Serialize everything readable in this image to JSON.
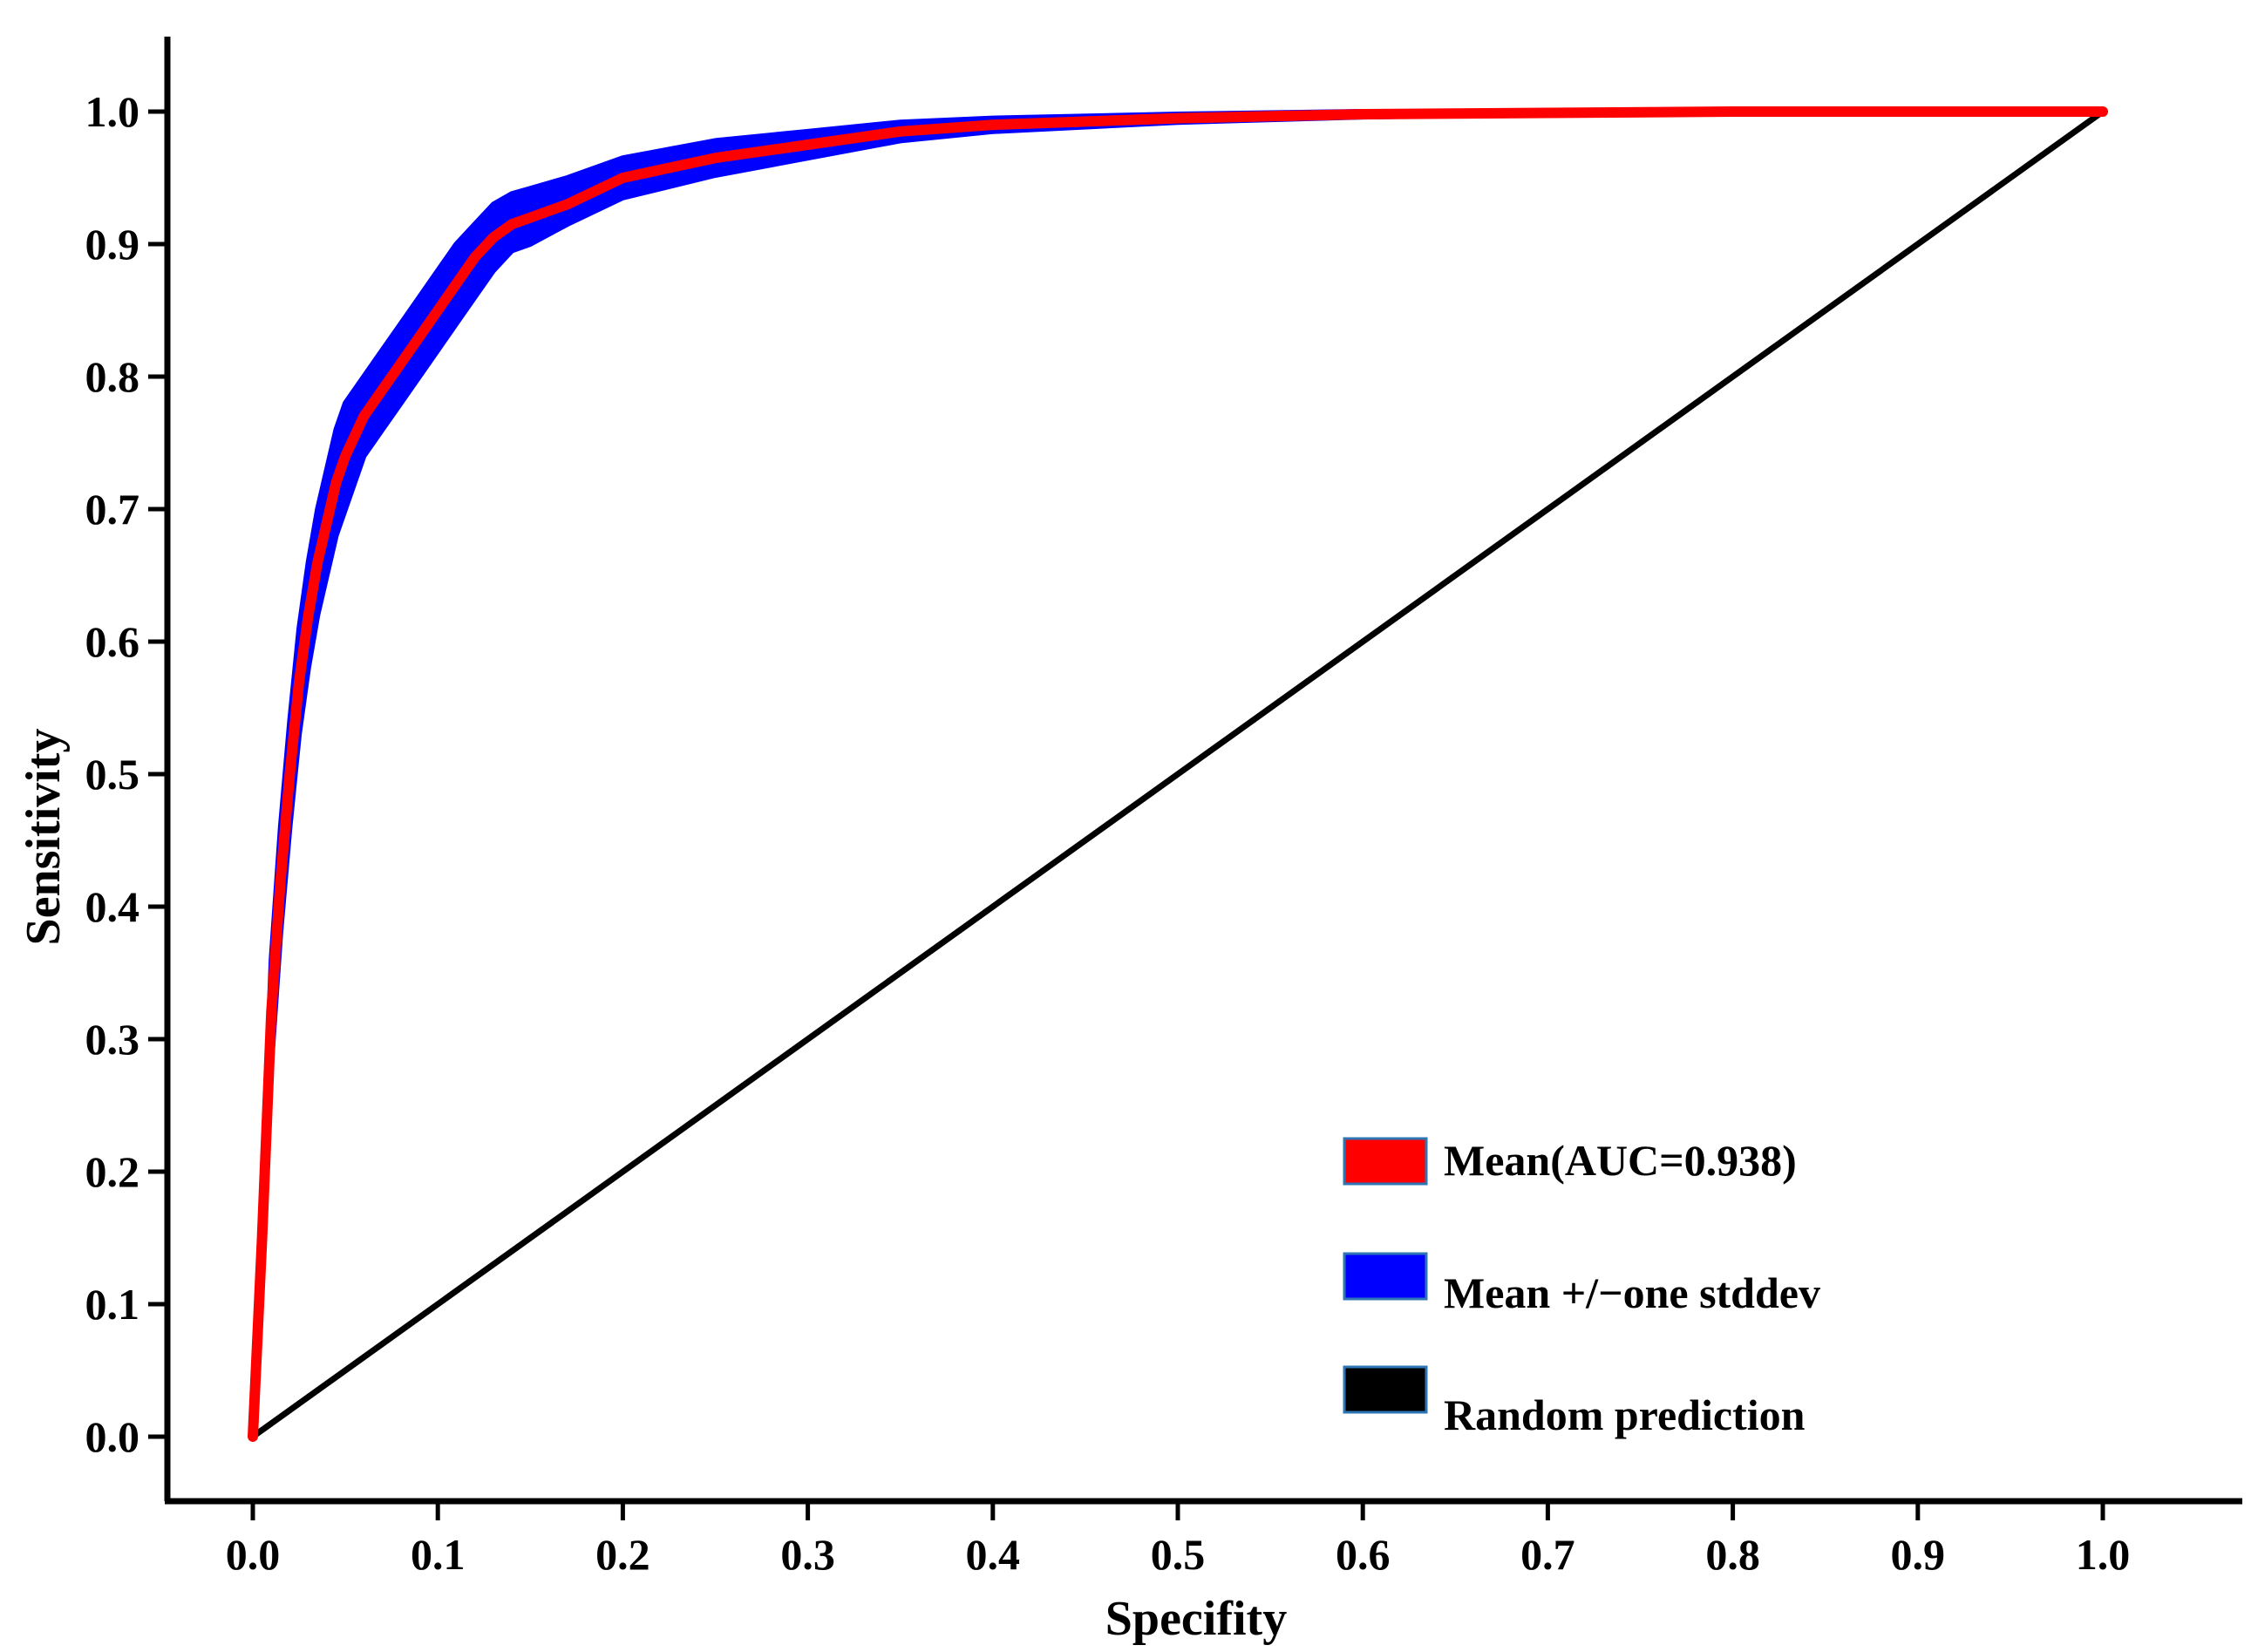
{
  "chart_data": {
    "type": "line",
    "title": "",
    "xlabel": "Specifity",
    "ylabel": "Sensitivity",
    "xlim": [
      0,
      1
    ],
    "ylim": [
      0,
      1
    ],
    "grid": false,
    "legend_position": "bottom-right",
    "x_ticks": [
      {
        "value": 0.0,
        "label": "0.0"
      },
      {
        "value": 0.1,
        "label": "0.1"
      },
      {
        "value": 0.2,
        "label": "0.2"
      },
      {
        "value": 0.3,
        "label": "0.3"
      },
      {
        "value": 0.4,
        "label": "0.4"
      },
      {
        "value": 0.5,
        "label": "0.5"
      },
      {
        "value": 0.6,
        "label": "0.6"
      },
      {
        "value": 0.7,
        "label": "0.7"
      },
      {
        "value": 0.8,
        "label": "0.8"
      },
      {
        "value": 0.9,
        "label": "0.9"
      },
      {
        "value": 1.0,
        "label": "1.0"
      }
    ],
    "y_ticks": [
      {
        "value": 0.0,
        "label": "0.0"
      },
      {
        "value": 0.1,
        "label": "0.1"
      },
      {
        "value": 0.2,
        "label": "0.2"
      },
      {
        "value": 0.3,
        "label": "0.3"
      },
      {
        "value": 0.4,
        "label": "0.4"
      },
      {
        "value": 0.5,
        "label": "0.5"
      },
      {
        "value": 0.6,
        "label": "0.6"
      },
      {
        "value": 0.7,
        "label": "0.7"
      },
      {
        "value": 0.8,
        "label": "0.8"
      },
      {
        "value": 0.9,
        "label": "0.9"
      },
      {
        "value": 1.0,
        "label": "1.0"
      }
    ],
    "series": [
      {
        "name": "Mean(AUC=0.938)",
        "kind": "line",
        "color": "#ff0000",
        "x": [
          0.0,
          0.005,
          0.01,
          0.015,
          0.02,
          0.025,
          0.03,
          0.035,
          0.04,
          0.045,
          0.05,
          0.06,
          0.07,
          0.08,
          0.09,
          0.1,
          0.11,
          0.12,
          0.13,
          0.14,
          0.15,
          0.17,
          0.2,
          0.25,
          0.3,
          0.35,
          0.4,
          0.5,
          0.6,
          0.7,
          0.8,
          0.9,
          1.0
        ],
        "y": [
          0.0,
          0.15,
          0.32,
          0.42,
          0.5,
          0.57,
          0.62,
          0.66,
          0.69,
          0.72,
          0.74,
          0.77,
          0.79,
          0.81,
          0.83,
          0.85,
          0.87,
          0.89,
          0.905,
          0.915,
          0.92,
          0.93,
          0.95,
          0.965,
          0.975,
          0.985,
          0.99,
          0.995,
          0.998,
          0.999,
          1.0,
          1.0,
          1.0
        ]
      },
      {
        "name": "Mean +/−one stddev",
        "kind": "band",
        "color": "#0000ff",
        "x": [
          0.0,
          0.005,
          0.01,
          0.015,
          0.02,
          0.025,
          0.03,
          0.035,
          0.04,
          0.045,
          0.05,
          0.06,
          0.07,
          0.08,
          0.09,
          0.1,
          0.11,
          0.12,
          0.13,
          0.14,
          0.15,
          0.17,
          0.2,
          0.25,
          0.3,
          0.35,
          0.4,
          0.5,
          0.6,
          0.7,
          0.8,
          0.9,
          1.0
        ],
        "y_upper": [
          0.02,
          0.18,
          0.36,
          0.46,
          0.54,
          0.61,
          0.66,
          0.7,
          0.73,
          0.76,
          0.78,
          0.8,
          0.82,
          0.84,
          0.86,
          0.88,
          0.9,
          0.915,
          0.93,
          0.938,
          0.942,
          0.95,
          0.965,
          0.978,
          0.985,
          0.992,
          0.995,
          0.998,
          1.0,
          1.0,
          1.0,
          1.0,
          1.0
        ],
        "y_lower": [
          0.0,
          0.12,
          0.28,
          0.38,
          0.46,
          0.53,
          0.58,
          0.62,
          0.65,
          0.68,
          0.7,
          0.74,
          0.76,
          0.78,
          0.8,
          0.82,
          0.84,
          0.86,
          0.88,
          0.895,
          0.9,
          0.915,
          0.935,
          0.952,
          0.965,
          0.978,
          0.985,
          0.992,
          0.996,
          0.998,
          1.0,
          1.0,
          1.0
        ]
      },
      {
        "name": "Random prediction",
        "kind": "line",
        "color": "#000000",
        "x": [
          0.0,
          1.0
        ],
        "y": [
          0.0,
          1.0
        ]
      }
    ]
  }
}
